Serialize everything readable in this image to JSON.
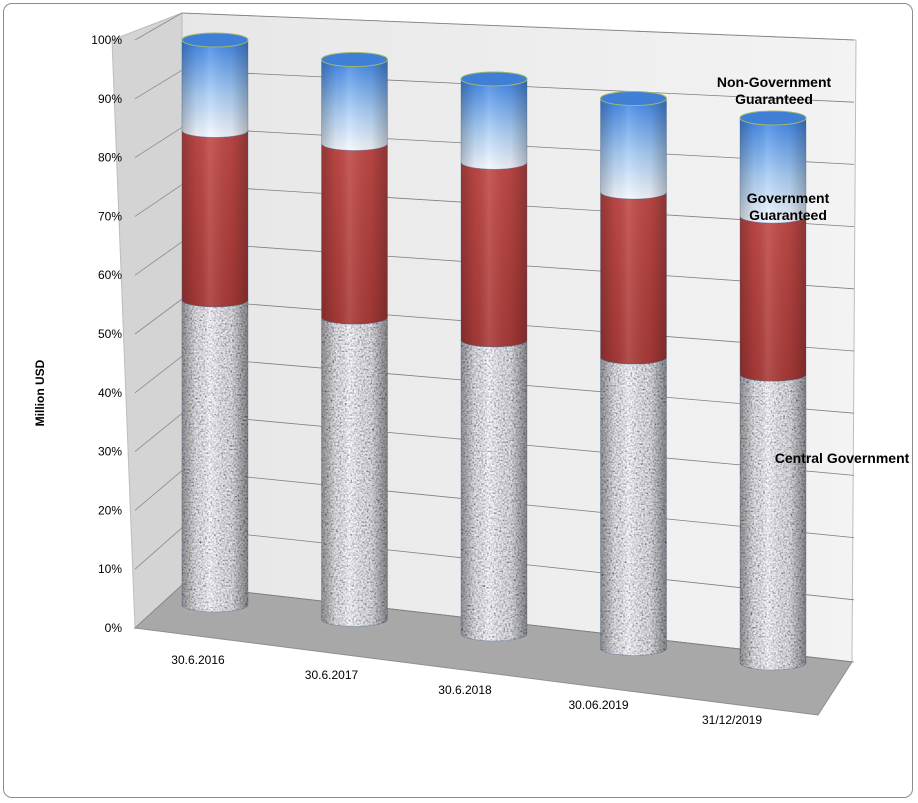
{
  "chart_data": {
    "type": "bar",
    "stacked": true,
    "style": "3d-cylinder",
    "ylabel": "Million USD",
    "xlabel": "",
    "ylim": [
      0,
      100
    ],
    "y_ticks": [
      "0%",
      "10%",
      "20%",
      "30%",
      "40%",
      "50%",
      "60%",
      "70%",
      "80%",
      "90%",
      "100%"
    ],
    "categories": [
      "30.6.2016",
      "30.6.2017",
      "30.6.2018",
      "30.06.2019",
      "31/12/2019"
    ],
    "series": [
      {
        "name": "Central Government",
        "color": "#b5b5b8",
        "values": [
          54,
          54,
          53,
          53,
          53
        ]
      },
      {
        "name": "Government Guaranteed",
        "color": "#b0413e",
        "values": [
          30,
          31,
          32,
          30,
          29
        ]
      },
      {
        "name": "Non-Government Guaranteed",
        "color": "#5f9ce6",
        "values": [
          16,
          15,
          15,
          17,
          18
        ]
      }
    ],
    "series_labels": [
      {
        "lines": [
          "Central Government"
        ]
      },
      {
        "lines": [
          "Government",
          "Guaranteed"
        ]
      },
      {
        "lines": [
          "Non-Government",
          "Guaranteed"
        ]
      }
    ],
    "grid": true,
    "legend": "none"
  }
}
